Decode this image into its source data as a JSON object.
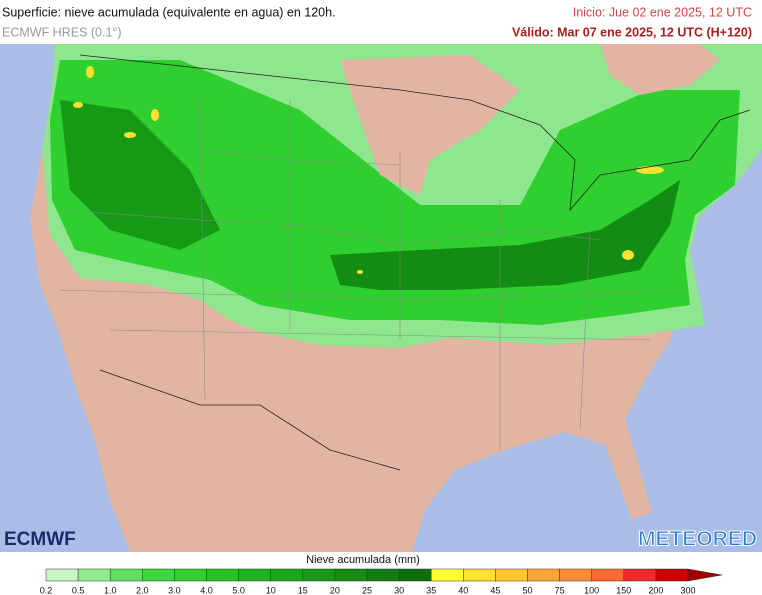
{
  "header": {
    "title": "Superficie: nieve acumulada (equivalente en agua) en 120h.",
    "model": "ECMWF HRES (0.1°)",
    "init": "Inicio: Jue 02 ene 2025, 12 UTC",
    "valid": "Válido: Mar 07 ene 2025, 12 UTC (H+120)"
  },
  "logos": {
    "left": "ECMWF",
    "right": "METEORED"
  },
  "legend": {
    "title": "Nieve acumulada (mm)",
    "labels": [
      "0.2",
      "0.5",
      "1.0",
      "2.0",
      "3.0",
      "4.0",
      "5.0",
      "10",
      "15",
      "20",
      "25",
      "30",
      "35",
      "40",
      "45",
      "50",
      "75",
      "100",
      "150",
      "200",
      "300"
    ],
    "colors": [
      "#c8f5c8",
      "#90ee90",
      "#5de05d",
      "#3cd83c",
      "#2fcf2f",
      "#22c422",
      "#1db51d",
      "#1aa81a",
      "#169a16",
      "#138c13",
      "#107e10",
      "#0c6e0c",
      "#ffff33",
      "#ffe033",
      "#ffc833",
      "#ffa533",
      "#ff8c33",
      "#ff6a33",
      "#ee2a2a",
      "#cc0000",
      "#a00000"
    ]
  }
}
